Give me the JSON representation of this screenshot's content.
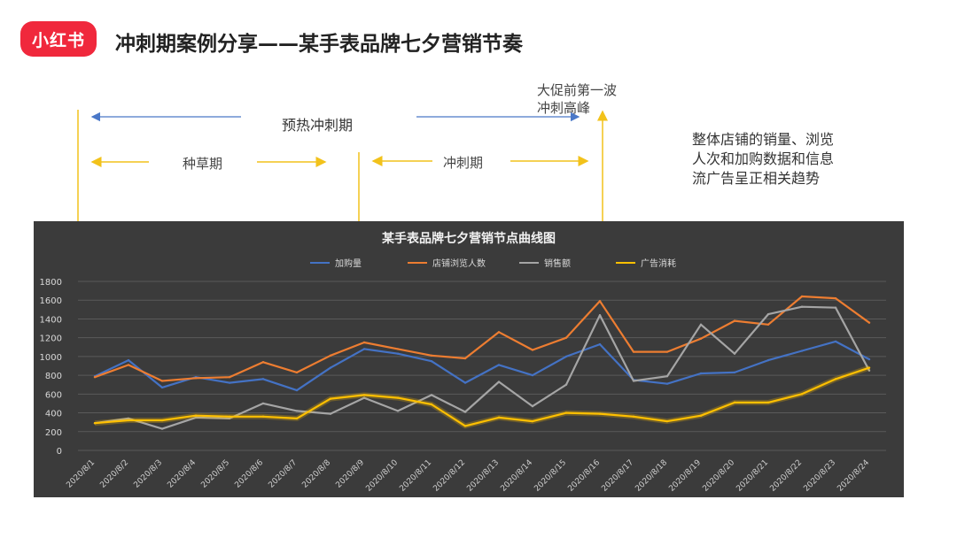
{
  "brand": {
    "logo_text": "小红书"
  },
  "header": {
    "title": "冲刺期案例分享——某手表品牌七夕营销节奏"
  },
  "annotations": {
    "preheat": "预热冲刺期",
    "seeding": "种草期",
    "sprint": "冲刺期",
    "peak_line1": "大促前第一波",
    "peak_line2": "冲刺高峰",
    "note_lines": [
      "整体店铺的销量、浏览",
      "人次和加购数据和信息",
      "流广告呈正相关趋势"
    ]
  },
  "colors": {
    "accent_red": "#f0283c",
    "annotation_yellow": "#f2c21b",
    "annotation_blue": "#4a78c8",
    "chart_bg": "#3b3b3b"
  },
  "chart_data": {
    "type": "line",
    "title": "某手表品牌七夕营销节点曲线图",
    "legend_position": "top",
    "grid": true,
    "ylim": [
      0,
      1800
    ],
    "yticks": [
      0,
      200,
      400,
      600,
      800,
      1000,
      1200,
      1400,
      1600,
      1800
    ],
    "categories": [
      "2020/8/1",
      "2020/8/2",
      "2020/8/3",
      "2020/8/4",
      "2020/8/5",
      "2020/8/6",
      "2020/8/7",
      "2020/8/8",
      "2020/8/9",
      "2020/8/10",
      "2020/8/11",
      "2020/8/12",
      "2020/8/13",
      "2020/8/14",
      "2020/8/15",
      "2020/8/16",
      "2020/8/17",
      "2020/8/18",
      "2020/8/19",
      "2020/8/20",
      "2020/8/21",
      "2020/8/22",
      "2020/8/23",
      "2020/8/24"
    ],
    "series": [
      {
        "name": "加购量",
        "color": "#4472c4",
        "values": [
          790,
          960,
          670,
          780,
          720,
          760,
          640,
          880,
          1080,
          1030,
          950,
          720,
          910,
          800,
          1000,
          1130,
          750,
          710,
          820,
          830,
          960,
          1060,
          1160,
          970
        ]
      },
      {
        "name": "店铺浏览人数",
        "color": "#ed7d31",
        "values": [
          780,
          910,
          740,
          770,
          780,
          940,
          830,
          1010,
          1150,
          1080,
          1010,
          980,
          1260,
          1070,
          1200,
          1590,
          1050,
          1050,
          1190,
          1380,
          1340,
          1640,
          1620,
          1360
        ]
      },
      {
        "name": "销售额",
        "color": "#a5a5a5",
        "values": [
          290,
          340,
          230,
          350,
          340,
          500,
          420,
          390,
          560,
          420,
          590,
          410,
          730,
          470,
          700,
          1440,
          740,
          790,
          1340,
          1030,
          1450,
          1530,
          1520,
          850
        ]
      },
      {
        "name": "广告消耗",
        "color": "#ffc000",
        "values": [
          290,
          320,
          320,
          370,
          360,
          360,
          340,
          550,
          590,
          560,
          490,
          260,
          350,
          310,
          400,
          390,
          360,
          310,
          370,
          510,
          510,
          600,
          760,
          880
        ]
      }
    ]
  }
}
